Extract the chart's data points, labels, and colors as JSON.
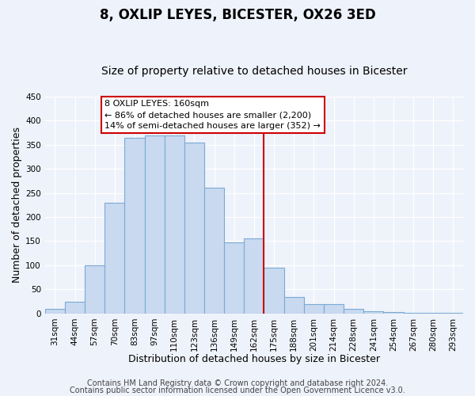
{
  "title": "8, OXLIP LEYES, BICESTER, OX26 3ED",
  "subtitle": "Size of property relative to detached houses in Bicester",
  "xlabel": "Distribution of detached houses by size in Bicester",
  "ylabel": "Number of detached properties",
  "bar_labels": [
    "31sqm",
    "44sqm",
    "57sqm",
    "70sqm",
    "83sqm",
    "97sqm",
    "110sqm",
    "123sqm",
    "136sqm",
    "149sqm",
    "162sqm",
    "175sqm",
    "188sqm",
    "201sqm",
    "214sqm",
    "228sqm",
    "241sqm",
    "254sqm",
    "267sqm",
    "280sqm",
    "293sqm"
  ],
  "bar_values": [
    10,
    25,
    100,
    230,
    365,
    370,
    370,
    355,
    260,
    148,
    155,
    95,
    35,
    20,
    20,
    10,
    5,
    3,
    2,
    2,
    2
  ],
  "bar_color": "#c8d9f0",
  "bar_edge_color": "#7baad4",
  "vline_color": "#cc0000",
  "annotation_title": "8 OXLIP LEYES: 160sqm",
  "annotation_line1": "← 86% of detached houses are smaller (2,200)",
  "annotation_line2": "14% of semi-detached houses are larger (352) →",
  "annotation_box_facecolor": "#ffffff",
  "annotation_box_edgecolor": "#cc0000",
  "ylim": [
    0,
    450
  ],
  "yticks": [
    0,
    50,
    100,
    150,
    200,
    250,
    300,
    350,
    400,
    450
  ],
  "footer1": "Contains HM Land Registry data © Crown copyright and database right 2024.",
  "footer2": "Contains public sector information licensed under the Open Government Licence v3.0.",
  "background_color": "#eef2fa",
  "grid_color": "#ffffff",
  "title_fontsize": 12,
  "subtitle_fontsize": 10,
  "axis_label_fontsize": 9,
  "tick_fontsize": 7.5,
  "footer_fontsize": 7,
  "annotation_fontsize": 8,
  "vline_x_index": 10.5
}
